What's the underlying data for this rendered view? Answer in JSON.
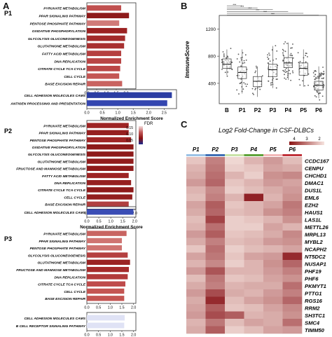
{
  "panel_labels": {
    "a": "A",
    "b": "B",
    "c": "C"
  },
  "panelA": {
    "fdr_legend": {
      "title": "FDR",
      "ticks": [
        "0.15",
        "0.10",
        "0.05"
      ],
      "colors": [
        "#f3dede",
        "#c25a5a",
        "#8b1010",
        "#1a2a8f"
      ]
    },
    "xlabel": "Normalized Enrichment Score"
  },
  "panelB": {
    "ylabel": "ImmuneScore",
    "significance": "***"
  },
  "panelC": {
    "title": "Log2 Fold-Change in CSF-DLBCs",
    "scale_ticks": [
      "4",
      "3",
      "2"
    ]
  },
  "chart_data": [
    {
      "type": "bar",
      "orientation": "horizontal",
      "title": "P1",
      "categories": [
        "PYRUVATE METABOLISM",
        "PPAR SIGNALING PATHWAY",
        "PENTOSE PHOSPHATE PATHWAY",
        "OXIDATIVE PHOSPHORYLATION",
        "GLYCOLYSIS GLUCONEOGENESIS",
        "GLUTATHIONE METABOLISM",
        "FATTY ACID METABOLISM",
        "DNA REPLICATION",
        "CITRATE CYCLE TCA CYCLE",
        "CELL CYCLE",
        "BASE EXCISION REPAIR"
      ],
      "values": [
        1.75,
        2.15,
        1.65,
        2.05,
        1.95,
        1.9,
        1.75,
        1.75,
        1.7,
        1.65,
        1.8
      ],
      "fdr_color": [
        "#c0504f",
        "#8e1a1a",
        "#d07a78",
        "#9b2222",
        "#a32b2b",
        "#a83030",
        "#b54040",
        "#b94444",
        "#bb4747",
        "#c45654",
        "#c96360"
      ],
      "xlim": [
        0,
        2.5
      ],
      "xticks": [
        "0.0",
        "0.5",
        "1.0",
        "1.5",
        "2.0"
      ],
      "negative": {
        "categories": [
          "CELL ADHESION MOLECULES CAMS",
          "ANTIGEN PROCESSING AND PRESENTATION"
        ],
        "values": [
          2.75,
          2.6
        ],
        "fdr_color": [
          "#2b3da3",
          "#3446b0"
        ],
        "xlim": [
          0,
          2.9
        ],
        "xticks": [
          "0.0",
          "0.5",
          "1.0",
          "1.5",
          "2.0",
          "2.5"
        ]
      }
    },
    {
      "type": "bar",
      "orientation": "horizontal",
      "title": "P2",
      "categories": [
        "PYRUVATE METABOLISM",
        "PPAR SIGNALING PATHWAY",
        "PENTOSE PHOSPHATE PATHWAY",
        "OXIDATIVE PHOSPHORYLATION",
        "GLYCOLYSIS GLUCONEOGENESIS",
        "GLUTATHIONE METABOLISM",
        "FRUCTOSE AND MANNOSE METABOLISM",
        "FATTY ACID METABOLISM",
        "DNA REPLICATION",
        "CITRATE CYCLE TCA CYCLE",
        "CELL CYCLE",
        "BASE EXCISION REPAIR"
      ],
      "values": [
        1.75,
        1.75,
        1.85,
        1.95,
        1.95,
        1.95,
        1.95,
        1.75,
        1.85,
        1.95,
        1.9,
        1.75
      ],
      "fdr_color": [
        "#9e2424",
        "#962020",
        "#a02626",
        "#8e1a1a",
        "#8e1a1a",
        "#911c1c",
        "#8e1a1a",
        "#9d2424",
        "#962020",
        "#8e1a1a",
        "#931e1e",
        "#b04040"
      ],
      "xlim": [
        0,
        2.05
      ],
      "xticks": [
        "0.0",
        "0.5",
        "1.0",
        "1.5",
        "2.0"
      ],
      "negative": {
        "categories": [
          "CELL ADHESION MOLECULES CAMS"
        ],
        "values": [
          1.95
        ],
        "fdr_color": [
          "#3a4db5"
        ],
        "xlim": [
          0,
          2.05
        ],
        "xticks": [
          "0.0",
          "0.5",
          "1.0",
          "1.5",
          "2.0"
        ]
      }
    },
    {
      "type": "bar",
      "orientation": "horizontal",
      "title": "P3",
      "categories": [
        "PYRUVATE METABOLISM",
        "PPAR SIGNALING PATHWAY",
        "PENTOSE PHOSPHATE PATHWAY",
        "GLYCOLYSIS GLUCONEOGENESIS",
        "GLUTATHIONE METABOLISM",
        "FRUCTOSE AND MANNOSE METABOLISM",
        "DNA REPLICATION",
        "CITRATE CYCLE TCA CYCLE",
        "CELL CYCLE",
        "BASE EXCISION REPAIR"
      ],
      "values": [
        1.7,
        1.5,
        1.5,
        1.75,
        1.85,
        1.8,
        1.75,
        1.65,
        1.6,
        1.6
      ],
      "fdr_color": [
        "#c86461",
        "#cf7471",
        "#cf7471",
        "#b54040",
        "#9b2424",
        "#a52b2b",
        "#b23a3a",
        "#bf4b4b",
        "#c45552",
        "#c45552"
      ],
      "xlim": [
        0,
        2.1
      ],
      "xticks": [
        "0.0",
        "0.5",
        "1.0",
        "1.5",
        "2.0"
      ],
      "negative": {
        "categories": [
          "CELL ADHESION MOLECULES CAMS",
          "B CELL RECEPTOR SIGNALING PATHWAY"
        ],
        "values": [
          1.62,
          1.6
        ],
        "fdr_color": [
          "#dfe2f5",
          "#dfe2f5"
        ],
        "xlim": [
          0,
          2.1
        ],
        "xticks": [
          "0.0",
          "0.5",
          "1.0",
          "1.5",
          "2.0"
        ]
      }
    },
    {
      "type": "box",
      "title": "",
      "categories": [
        "B",
        "P1",
        "P2",
        "P3",
        "P4",
        "P5",
        "P6"
      ],
      "series": [
        {
          "medians": [
            680,
            560,
            430,
            600,
            700,
            620,
            370
          ],
          "q1": [
            620,
            470,
            350,
            500,
            630,
            520,
            300
          ],
          "q3": [
            760,
            640,
            500,
            680,
            780,
            700,
            430
          ],
          "whisker_low": [
            520,
            250,
            200,
            330,
            450,
            350,
            180
          ],
          "whisker_high": [
            900,
            900,
            650,
            950,
            1000,
            900,
            650
          ]
        }
      ],
      "ylim": [
        100,
        1400
      ],
      "yticks": [
        400,
        800,
        1200
      ]
    },
    {
      "type": "heatmap",
      "title": "Log2 Fold-Change in CSF-DLBCs",
      "x": [
        "P1",
        "P2",
        "P3",
        "P4",
        "P5",
        "P6"
      ],
      "x_colors": [
        "#9cc3e6",
        "#3f6fb5",
        "#c9e3a8",
        "#5fa33a",
        "#f2b9b9",
        "#c0323a"
      ],
      "y": [
        "CCDC167",
        "CENPU",
        "CHCHD1",
        "DMAC1",
        "DUS1L",
        "EML6",
        "EZH2",
        "HAUS1",
        "LAS1L",
        "METTL26",
        "MRPL13",
        "MYBL2",
        "NCAPH2",
        "NT5DC2",
        "NUSAP1",
        "PHF19",
        "PHF6",
        "PKMYT1",
        "PTTG1",
        "RGS16",
        "RRM2",
        "SH3TC1",
        "SMC4",
        "TIMM50"
      ],
      "z": [
        [
          2.4,
          3.2,
          2.2,
          2.6,
          2.9,
          2.5
        ],
        [
          2.6,
          3.3,
          2.3,
          2.4,
          2.8,
          2.7
        ],
        [
          2.7,
          3.4,
          2.6,
          2.3,
          3.0,
          3.1
        ],
        [
          2.9,
          3.5,
          2.4,
          2.6,
          2.9,
          2.8
        ],
        [
          2.6,
          3.1,
          2.3,
          2.5,
          2.7,
          2.9
        ],
        [
          2.5,
          3.2,
          2.6,
          4.3,
          2.6,
          3.0
        ],
        [
          2.8,
          3.6,
          2.4,
          2.6,
          2.8,
          3.3
        ],
        [
          2.7,
          3.5,
          2.5,
          2.6,
          3.0,
          3.2
        ],
        [
          2.5,
          3.9,
          2.3,
          2.4,
          2.6,
          3.0
        ],
        [
          2.6,
          3.4,
          2.3,
          2.3,
          2.8,
          2.6
        ],
        [
          2.9,
          3.6,
          2.4,
          2.5,
          2.7,
          3.1
        ],
        [
          2.7,
          3.2,
          2.5,
          2.6,
          2.9,
          3.0
        ],
        [
          2.4,
          3.4,
          2.3,
          2.5,
          2.6,
          2.8
        ],
        [
          2.8,
          3.3,
          2.4,
          2.8,
          2.9,
          4.2
        ],
        [
          2.6,
          3.1,
          2.3,
          2.6,
          3.0,
          3.5
        ],
        [
          2.9,
          3.7,
          2.6,
          2.6,
          2.9,
          3.2
        ],
        [
          2.5,
          3.3,
          2.4,
          2.5,
          2.8,
          3.0
        ],
        [
          2.7,
          3.2,
          2.6,
          2.7,
          2.7,
          3.4
        ],
        [
          2.9,
          3.8,
          2.7,
          2.6,
          2.9,
          3.2
        ],
        [
          2.7,
          4.2,
          2.5,
          2.8,
          3.0,
          3.5
        ],
        [
          2.8,
          3.6,
          2.4,
          2.5,
          2.8,
          3.1
        ],
        [
          2.9,
          3.8,
          3.6,
          2.6,
          2.7,
          3.0
        ],
        [
          2.6,
          3.3,
          2.5,
          2.8,
          2.7,
          3.4
        ],
        [
          2.7,
          3.6,
          2.3,
          2.5,
          2.8,
          2.9
        ]
      ],
      "zlim": [
        2,
        4.5
      ]
    }
  ]
}
